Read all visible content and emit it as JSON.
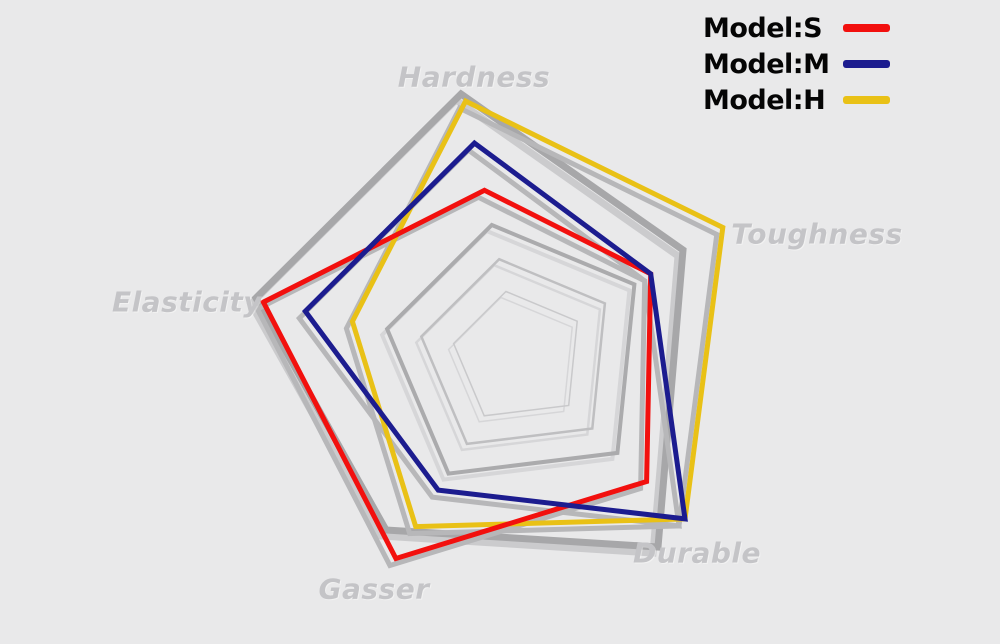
{
  "background_color": "#e9e9ea",
  "legend": {
    "position": "top-right",
    "items": [
      {
        "label": "Model:S",
        "color": "#f2100e"
      },
      {
        "label": "Model:M",
        "color": "#1c1c8f"
      },
      {
        "label": "Model:H",
        "color": "#e9c116"
      }
    ]
  },
  "chart_data": {
    "type": "radar",
    "categories": [
      "Hardness",
      "Toughness",
      "Durable",
      "Gasser",
      "Elasticity"
    ],
    "axis_label_color": "#c4c4c7",
    "scale": {
      "min": 0,
      "max": 5,
      "inner_ring_levels": [
        1.3,
        1.9,
        2.5
      ],
      "outer_boundary": "bold irregular pentagon"
    },
    "grid": {
      "ring_color": "#b5b5b7",
      "outer_ring_color": "#a7a7a9",
      "shape": "pentagon"
    },
    "series": [
      {
        "name": "Model:S",
        "color": "#f2100e",
        "values": [
          3.2,
          2.9,
          3.3,
          4.4,
          4.9
        ]
      },
      {
        "name": "Model:M",
        "color": "#1c1c8f",
        "values": [
          4.1,
          2.9,
          4.3,
          2.9,
          4.1
        ]
      },
      {
        "name": "Model:H",
        "color": "#e9c116",
        "values": [
          4.9,
          4.5,
          4.3,
          3.7,
          3.2
        ]
      }
    ],
    "legend_position": "top-right"
  }
}
